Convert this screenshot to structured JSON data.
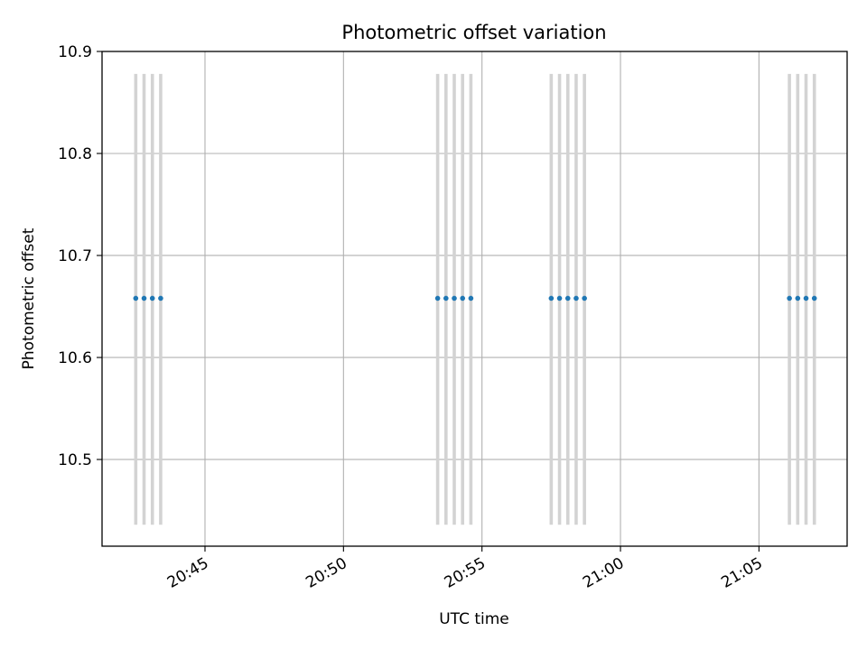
{
  "chart_data": {
    "type": "scatter",
    "title": "Photometric offset variation",
    "xlabel": "UTC time",
    "ylabel": "Photometric offset",
    "xlim": [
      "20:41:17",
      "21:08:11"
    ],
    "ylim": [
      10.415,
      10.9
    ],
    "x_ticks": [
      "20:45",
      "20:50",
      "20:55",
      "21:00",
      "21:05"
    ],
    "y_ticks": [
      "10.5",
      "10.6",
      "10.7",
      "10.8",
      "10.9"
    ],
    "grid": true,
    "series": [
      {
        "marker_color": "#1f77b4",
        "points": [
          {
            "x": "20:42:30",
            "y": 10.658
          },
          {
            "x": "20:42:48",
            "y": 10.658
          },
          {
            "x": "20:43:06",
            "y": 10.658
          },
          {
            "x": "20:43:24",
            "y": 10.658
          },
          {
            "x": "20:53:24",
            "y": 10.658
          },
          {
            "x": "20:53:42",
            "y": 10.658
          },
          {
            "x": "20:54:00",
            "y": 10.658
          },
          {
            "x": "20:54:18",
            "y": 10.658
          },
          {
            "x": "20:54:36",
            "y": 10.658
          },
          {
            "x": "20:57:30",
            "y": 10.658
          },
          {
            "x": "20:57:48",
            "y": 10.658
          },
          {
            "x": "20:58:06",
            "y": 10.658
          },
          {
            "x": "20:58:24",
            "y": 10.658
          },
          {
            "x": "20:58:42",
            "y": 10.658
          },
          {
            "x": "21:06:06",
            "y": 10.658
          },
          {
            "x": "21:06:24",
            "y": 10.658
          },
          {
            "x": "21:06:42",
            "y": 10.658
          },
          {
            "x": "21:07:00",
            "y": 10.658
          }
        ]
      }
    ],
    "vertical_markers": {
      "color": "#d3d3d3",
      "y_range": [
        10.436,
        10.878
      ],
      "x": [
        "20:42:30",
        "20:42:48",
        "20:43:06",
        "20:43:24",
        "20:53:24",
        "20:53:42",
        "20:54:00",
        "20:54:18",
        "20:54:36",
        "20:57:30",
        "20:57:48",
        "20:58:06",
        "20:58:24",
        "20:58:42",
        "21:06:06",
        "21:06:24",
        "21:06:42",
        "21:07:00"
      ]
    }
  }
}
